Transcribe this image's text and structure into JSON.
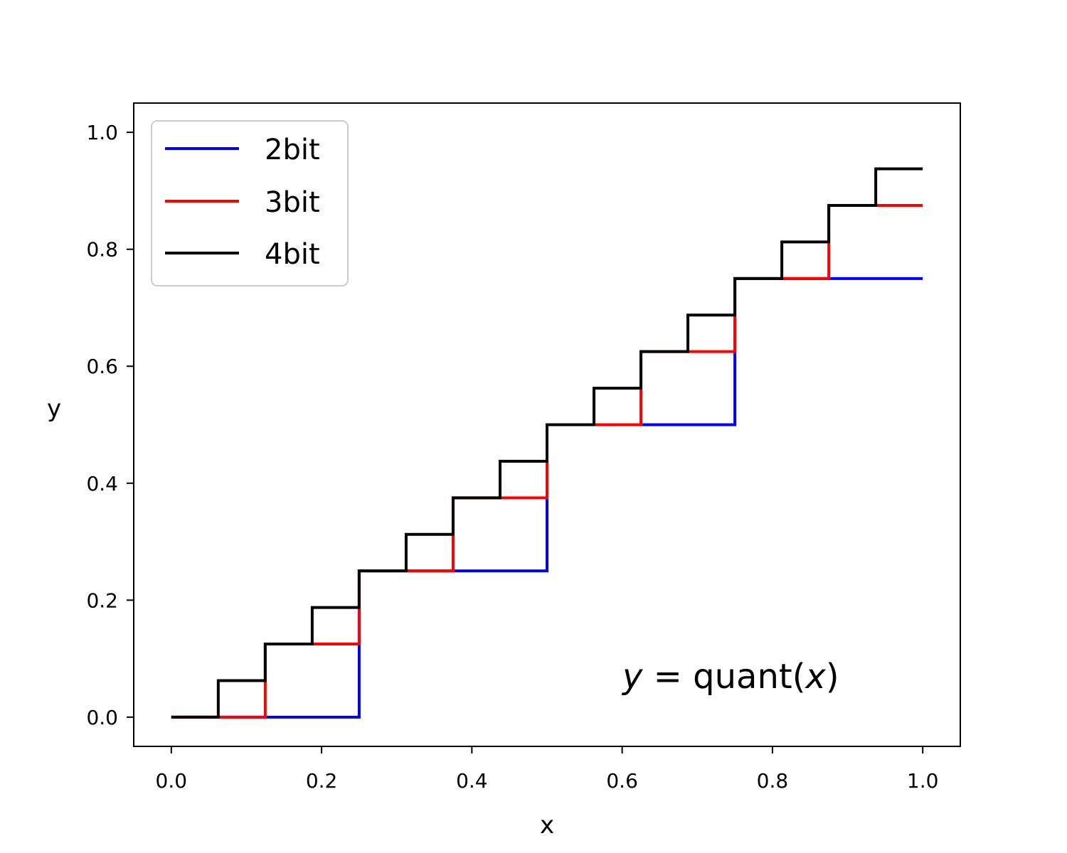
{
  "chart_data": {
    "type": "line",
    "title": "",
    "xlabel": "x",
    "ylabel": "y",
    "xlim": [
      -0.05,
      1.05
    ],
    "ylim": [
      -0.05,
      1.05
    ],
    "xticks": [
      0.0,
      0.2,
      0.4,
      0.6,
      0.8,
      1.0
    ],
    "xtick_labels": [
      "0.0",
      "0.2",
      "0.4",
      "0.6",
      "0.8",
      "1.0"
    ],
    "yticks": [
      0.0,
      0.2,
      0.4,
      0.6,
      0.8,
      1.0
    ],
    "ytick_labels": [
      "0.0",
      "0.2",
      "0.4",
      "0.6",
      "0.8",
      "1.0"
    ],
    "grid": false,
    "legend_position": "top-left",
    "series": [
      {
        "name": "2bit",
        "color": "#0000ff",
        "step": "post",
        "x": [
          0,
          0.25,
          0.5,
          0.75,
          1.0
        ],
        "y": [
          0,
          0.25,
          0.5,
          0.75,
          0.75
        ]
      },
      {
        "name": "3bit",
        "color": "#ff0000",
        "step": "post",
        "x": [
          0,
          0.125,
          0.25,
          0.375,
          0.5,
          0.625,
          0.75,
          0.875,
          1.0
        ],
        "y": [
          0,
          0.125,
          0.25,
          0.375,
          0.5,
          0.625,
          0.75,
          0.875,
          0.875
        ]
      },
      {
        "name": "4bit",
        "color": "#000000",
        "step": "post",
        "x": [
          0,
          0.0625,
          0.125,
          0.1875,
          0.25,
          0.3125,
          0.375,
          0.4375,
          0.5,
          0.5625,
          0.625,
          0.6875,
          0.75,
          0.8125,
          0.875,
          0.9375,
          1.0
        ],
        "y": [
          0,
          0.0625,
          0.125,
          0.1875,
          0.25,
          0.3125,
          0.375,
          0.4375,
          0.5,
          0.5625,
          0.625,
          0.6875,
          0.75,
          0.8125,
          0.875,
          0.9375,
          0.9375
        ]
      }
    ],
    "annotation": {
      "italic_y": "y",
      "equals": " = ",
      "func": "quant(",
      "italic_x": "x",
      "close": ")"
    }
  }
}
